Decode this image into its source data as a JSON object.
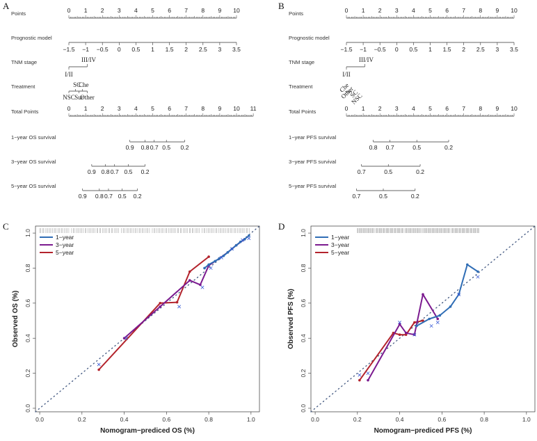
{
  "panel_labels": [
    "A",
    "B",
    "C",
    "D"
  ],
  "chart_data": [
    {
      "panel": "A",
      "type": "nomogram",
      "rows": [
        {
          "label": "Points",
          "ticks": [
            "0",
            "1",
            "2",
            "3",
            "4",
            "5",
            "6",
            "7",
            "8",
            "9",
            "10"
          ],
          "values": [
            0,
            1,
            2,
            3,
            4,
            5,
            6,
            7,
            8,
            9,
            10
          ]
        },
        {
          "label": "Prognostic model",
          "ticks": [
            "−1.5",
            "−1",
            "−0.5",
            "0",
            "0.5",
            "1",
            "1.5",
            "2",
            "2.5",
            "3",
            "3.5"
          ],
          "values": [
            -1.5,
            -1,
            -0.5,
            0,
            0.5,
            1,
            1.5,
            2,
            2.5,
            3,
            3.5
          ]
        },
        {
          "label": "TNM stage",
          "categories": [
            "I/II",
            "III/IV"
          ],
          "points": [
            0,
            1.1
          ]
        },
        {
          "label": "Treatment",
          "categories": [
            "NSC",
            "SC",
            "Sur",
            "Che",
            "Other"
          ],
          "points": [
            0,
            0.4,
            0.6,
            0.8,
            1.1
          ]
        },
        {
          "label": "Total Points",
          "ticks": [
            "0",
            "1",
            "2",
            "3",
            "4",
            "5",
            "6",
            "7",
            "8",
            "9",
            "10",
            "11"
          ],
          "values": [
            0,
            1,
            2,
            3,
            4,
            5,
            6,
            7,
            8,
            9,
            10,
            11
          ]
        },
        {
          "label": "1−year OS survival",
          "ticks": [
            "0.9",
            "0.8",
            "0.7",
            "0.5",
            "0.2"
          ],
          "total_points": [
            4.0,
            5.0,
            5.6,
            6.4,
            7.6
          ]
        },
        {
          "label": "3−year OS survival",
          "ticks": [
            "0.9",
            "0.8",
            "0.7",
            "0.5",
            "0.2"
          ],
          "total_points": [
            1.5,
            2.4,
            3.0,
            3.9,
            5.0
          ]
        },
        {
          "label": "5−year OS survival",
          "ticks": [
            "0.9",
            "0.8",
            "0.7",
            "0.5",
            "0.2"
          ],
          "total_points": [
            0.9,
            2.0,
            2.6,
            3.5,
            4.5
          ]
        }
      ]
    },
    {
      "panel": "B",
      "type": "nomogram",
      "rows": [
        {
          "label": "Points",
          "ticks": [
            "0",
            "1",
            "2",
            "3",
            "4",
            "5",
            "6",
            "7",
            "8",
            "9",
            "10"
          ],
          "values": [
            0,
            1,
            2,
            3,
            4,
            5,
            6,
            7,
            8,
            9,
            10
          ]
        },
        {
          "label": "Prognostic model",
          "ticks": [
            "−1.5",
            "−1",
            "−0.5",
            "0",
            "0.5",
            "1",
            "1.5",
            "2",
            "2.5",
            "3",
            "3.5"
          ],
          "values": [
            -1.5,
            -1,
            -0.5,
            0,
            0.5,
            1,
            1.5,
            2,
            2.5,
            3,
            3.5
          ]
        },
        {
          "label": "TNM stage",
          "categories": [
            "I/II",
            "III/IV"
          ],
          "points": [
            0,
            1.1
          ]
        },
        {
          "label": "Treatment",
          "categories": [
            "Che",
            "Other",
            "SC",
            "NSC"
          ],
          "points": [
            0,
            0.1,
            0.2,
            0.3
          ]
        },
        {
          "label": "Total Points",
          "ticks": [
            "0",
            "1",
            "2",
            "3",
            "4",
            "5",
            "6",
            "7",
            "8",
            "9",
            "10"
          ],
          "values": [
            0,
            1,
            2,
            3,
            4,
            5,
            6,
            7,
            8,
            9,
            10
          ]
        },
        {
          "label": "1−year PFS survival",
          "ticks": [
            "0.8",
            "0.7",
            "0.5",
            "0.2"
          ],
          "total_points": [
            1.6,
            2.6,
            4.2,
            6.1
          ]
        },
        {
          "label": "3−year PFS survival",
          "ticks": [
            "0.7",
            "0.5",
            "0.2"
          ],
          "total_points": [
            0.9,
            2.5,
            4.4
          ]
        },
        {
          "label": "5−year PFS survival",
          "ticks": [
            "0.7",
            "0.5",
            "0.2"
          ],
          "total_points": [
            0.6,
            2.2,
            4.1
          ]
        }
      ]
    },
    {
      "panel": "C",
      "type": "line",
      "xlabel": "Nomogram−prediced OS (%)",
      "ylabel": "Observed OS (%)",
      "xlim": [
        -0.02,
        1.04
      ],
      "ylim": [
        -0.02,
        1.04
      ],
      "ticks": [
        "0.0",
        "0.2",
        "0.4",
        "0.6",
        "0.8",
        "1.0"
      ],
      "grid": false,
      "legend_position": "top-left",
      "series": [
        {
          "name": "1−year",
          "color": "#2f6db5",
          "points": [
            [
              0.78,
              0.8
            ],
            [
              0.8,
              0.82
            ],
            [
              0.83,
              0.84
            ],
            [
              0.85,
              0.855
            ],
            [
              0.87,
              0.87
            ],
            [
              0.89,
              0.89
            ],
            [
              0.91,
              0.91
            ],
            [
              0.93,
              0.93
            ],
            [
              0.95,
              0.95
            ],
            [
              0.97,
              0.965
            ],
            [
              0.99,
              0.985
            ]
          ]
        },
        {
          "name": "3−year",
          "color": "#7b1a8f",
          "points": [
            [
              0.4,
              0.4
            ],
            [
              0.57,
              0.58
            ],
            [
              0.71,
              0.73
            ],
            [
              0.76,
              0.705
            ],
            [
              0.8,
              0.815
            ],
            [
              0.85,
              0.855
            ],
            [
              0.89,
              0.89
            ],
            [
              0.93,
              0.93
            ],
            [
              0.97,
              0.965
            ]
          ]
        },
        {
          "name": "5−year",
          "color": "#b3232c",
          "points": [
            [
              0.28,
              0.22
            ],
            [
              0.57,
              0.6
            ],
            [
              0.65,
              0.605
            ],
            [
              0.71,
              0.78
            ],
            [
              0.8,
              0.865
            ]
          ]
        }
      ],
      "calibration_x_marks": [
        [
          0.28,
          0.25
        ],
        [
          0.41,
          0.4
        ],
        [
          0.66,
          0.58
        ],
        [
          0.77,
          0.69
        ],
        [
          0.81,
          0.8
        ],
        [
          0.86,
          0.86
        ],
        [
          0.91,
          0.91
        ],
        [
          0.96,
          0.96
        ],
        [
          0.99,
          0.97
        ]
      ]
    },
    {
      "panel": "D",
      "type": "line",
      "xlabel": "Nomogram−prediced PFS (%)",
      "ylabel": "Observed PFS (%)",
      "xlim": [
        -0.02,
        1.04
      ],
      "ylim": [
        -0.02,
        1.04
      ],
      "ticks": [
        "0.0",
        "0.2",
        "0.4",
        "0.6",
        "0.8",
        "1.0"
      ],
      "grid": false,
      "legend_position": "top-left",
      "series": [
        {
          "name": "1−year",
          "color": "#2f6db5",
          "points": [
            [
              0.48,
              0.47
            ],
            [
              0.54,
              0.51
            ],
            [
              0.59,
              0.53
            ],
            [
              0.64,
              0.58
            ],
            [
              0.68,
              0.65
            ],
            [
              0.72,
              0.82
            ],
            [
              0.77,
              0.78
            ]
          ]
        },
        {
          "name": "3−year",
          "color": "#7b1a8f",
          "points": [
            [
              0.25,
              0.16
            ],
            [
              0.4,
              0.48
            ],
            [
              0.43,
              0.43
            ],
            [
              0.47,
              0.42
            ],
            [
              0.51,
              0.65
            ],
            [
              0.58,
              0.51
            ]
          ]
        },
        {
          "name": "5−year",
          "color": "#b3232c",
          "points": [
            [
              0.21,
              0.16
            ],
            [
              0.37,
              0.43
            ],
            [
              0.4,
              0.42
            ],
            [
              0.43,
              0.42
            ],
            [
              0.47,
              0.49
            ],
            [
              0.51,
              0.5
            ]
          ]
        }
      ],
      "calibration_x_marks": [
        [
          0.21,
          0.19
        ],
        [
          0.25,
          0.2
        ],
        [
          0.4,
          0.49
        ],
        [
          0.47,
          0.42
        ],
        [
          0.55,
          0.47
        ],
        [
          0.58,
          0.49
        ],
        [
          0.68,
          0.65
        ],
        [
          0.77,
          0.75
        ]
      ]
    }
  ]
}
